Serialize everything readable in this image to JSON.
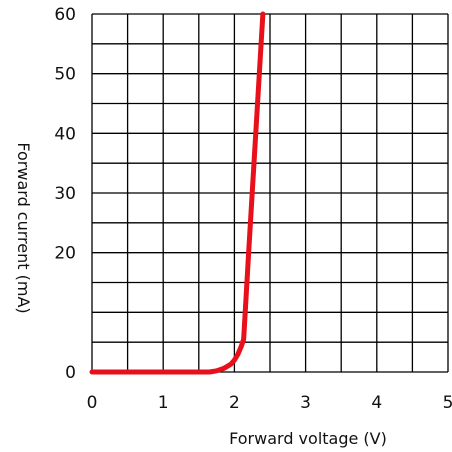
{
  "chart_data": {
    "type": "line",
    "title": "",
    "xlabel": "Forward voltage (V)",
    "ylabel": "Forward current (mA)",
    "xlim": [
      0,
      5
    ],
    "ylim": [
      0,
      60
    ],
    "x_ticks": [
      "0",
      "1",
      "2",
      "3",
      "4",
      "5"
    ],
    "y_ticks": [
      "0",
      "10",
      "20",
      "30",
      "40",
      "50",
      "60"
    ],
    "y_tick_labels_shown": [
      "0",
      "",
      "20",
      "30",
      "40",
      "50",
      "60"
    ],
    "grid": true,
    "grid_x_step": 0.5,
    "grid_y_step": 5,
    "series": [
      {
        "color": "#e8101a",
        "x": [
          0,
          0.5,
          1.0,
          1.5,
          1.65,
          1.75,
          1.85,
          1.95,
          2.0,
          2.05,
          2.1,
          2.13,
          2.2,
          2.3,
          2.4
        ],
        "y": [
          0,
          0,
          0,
          0,
          0,
          0.2,
          0.6,
          1.3,
          2.0,
          3.0,
          4.4,
          5.5,
          20,
          40,
          60
        ]
      }
    ]
  },
  "colors": {
    "grid": "#000000",
    "curve": "#e8101a",
    "background": "#ffffff"
  }
}
